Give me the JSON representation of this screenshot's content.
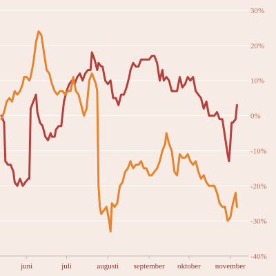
{
  "chart_data": {
    "type": "line",
    "ylim": [
      -40,
      30
    ],
    "xlim": [
      0,
      183
    ],
    "y_ticks": [
      30,
      20,
      10,
      0,
      -10,
      -20,
      -30,
      -40
    ],
    "y_tick_labels": [
      "30%",
      "20%",
      "10%",
      "0%",
      "-10%",
      "-20%",
      "-30%",
      "-40%"
    ],
    "x_ticks": [
      {
        "label": "juni",
        "x": 19
      },
      {
        "label": "juli",
        "x": 49
      },
      {
        "label": "augusti",
        "x": 80
      },
      {
        "label": "september",
        "x": 111
      },
      {
        "label": "oktober",
        "x": 141
      },
      {
        "label": "november",
        "x": 172
      }
    ],
    "grid": true,
    "series": [
      {
        "color": "#b8403a",
        "points": [
          [
            0,
            0
          ],
          [
            2,
            -2
          ],
          [
            3,
            -13
          ],
          [
            5,
            -14
          ],
          [
            7,
            -14
          ],
          [
            9,
            -16
          ],
          [
            10,
            -19
          ],
          [
            12,
            -20
          ],
          [
            14,
            -18
          ],
          [
            16,
            -20
          ],
          [
            18,
            -19
          ],
          [
            20,
            -18
          ],
          [
            21,
            -18
          ],
          [
            22,
            2
          ],
          [
            24,
            4
          ],
          [
            26,
            6
          ],
          [
            27,
            1
          ],
          [
            29,
            -2
          ],
          [
            31,
            -3
          ],
          [
            33,
            -6
          ],
          [
            35,
            -7
          ],
          [
            37,
            -5
          ],
          [
            38,
            -6
          ],
          [
            40,
            -6
          ],
          [
            41,
            -4
          ],
          [
            43,
            -3
          ],
          [
            45,
            -3
          ],
          [
            47,
            4
          ],
          [
            49,
            7
          ],
          [
            51,
            9
          ],
          [
            53,
            10
          ],
          [
            55,
            9
          ],
          [
            57,
            11
          ],
          [
            59,
            12
          ],
          [
            61,
            10
          ],
          [
            63,
            12
          ],
          [
            65,
            13
          ],
          [
            67,
            13
          ],
          [
            68,
            18
          ],
          [
            70,
            16
          ],
          [
            72,
            13
          ],
          [
            73,
            15
          ],
          [
            75,
            14
          ],
          [
            76,
            14
          ],
          [
            78,
            10
          ],
          [
            80,
            9
          ],
          [
            82,
            10
          ],
          [
            84,
            5
          ],
          [
            86,
            5
          ],
          [
            88,
            3
          ],
          [
            90,
            6
          ],
          [
            92,
            6
          ],
          [
            94,
            8
          ],
          [
            96,
            11
          ],
          [
            97,
            13
          ],
          [
            99,
            15
          ],
          [
            101,
            14
          ],
          [
            103,
            14
          ],
          [
            105,
            16
          ],
          [
            107,
            16
          ],
          [
            109,
            16
          ],
          [
            111,
            16
          ],
          [
            113,
            17
          ],
          [
            115,
            17
          ],
          [
            117,
            15
          ],
          [
            119,
            10
          ],
          [
            121,
            13
          ],
          [
            122,
            10
          ],
          [
            124,
            11
          ],
          [
            126,
            10
          ],
          [
            128,
            7
          ],
          [
            130,
            7
          ],
          [
            132,
            7
          ],
          [
            134,
            11
          ],
          [
            136,
            8
          ],
          [
            138,
            9
          ],
          [
            140,
            11
          ],
          [
            142,
            10
          ],
          [
            144,
            11
          ],
          [
            146,
            7
          ],
          [
            148,
            6
          ],
          [
            150,
            5
          ],
          [
            152,
            2
          ],
          [
            154,
            4
          ],
          [
            156,
            0
          ],
          [
            158,
            0
          ],
          [
            160,
            0
          ],
          [
            162,
            1
          ],
          [
            164,
            -1
          ],
          [
            166,
            -1
          ],
          [
            168,
            -6
          ],
          [
            170,
            -11
          ],
          [
            171,
            -13
          ],
          [
            172,
            -8
          ],
          [
            173,
            -2
          ],
          [
            174,
            -2
          ],
          [
            176,
            -1
          ],
          [
            177,
            3
          ]
        ]
      },
      {
        "color": "#e8842e",
        "points": [
          [
            0,
            -1
          ],
          [
            2,
            1
          ],
          [
            4,
            4
          ],
          [
            6,
            5
          ],
          [
            8,
            4
          ],
          [
            10,
            7
          ],
          [
            12,
            6
          ],
          [
            14,
            7
          ],
          [
            16,
            9
          ],
          [
            17,
            11
          ],
          [
            19,
            11
          ],
          [
            21,
            10
          ],
          [
            22,
            11
          ],
          [
            24,
            15
          ],
          [
            26,
            21
          ],
          [
            28,
            24
          ],
          [
            30,
            23
          ],
          [
            32,
            18
          ],
          [
            34,
            13
          ],
          [
            36,
            12
          ],
          [
            38,
            9
          ],
          [
            40,
            7
          ],
          [
            42,
            6
          ],
          [
            44,
            7
          ],
          [
            46,
            7
          ],
          [
            48,
            6
          ],
          [
            50,
            7
          ],
          [
            52,
            7
          ],
          [
            54,
            11
          ],
          [
            56,
            7
          ],
          [
            58,
            6
          ],
          [
            60,
            3
          ],
          [
            62,
            0
          ],
          [
            64,
            2
          ],
          [
            66,
            10
          ],
          [
            68,
            12
          ],
          [
            70,
            10
          ],
          [
            71,
            9
          ],
          [
            72,
            7
          ],
          [
            73,
            -20
          ],
          [
            74,
            -26
          ],
          [
            75,
            -28
          ],
          [
            77,
            -27
          ],
          [
            79,
            -26
          ],
          [
            81,
            -30
          ],
          [
            82,
            -33
          ],
          [
            83,
            -25
          ],
          [
            85,
            -26
          ],
          [
            87,
            -25
          ],
          [
            89,
            -20
          ],
          [
            91,
            -19
          ],
          [
            93,
            -16
          ],
          [
            95,
            -15
          ],
          [
            97,
            -13
          ],
          [
            99,
            -15
          ],
          [
            101,
            -14
          ],
          [
            103,
            -14
          ],
          [
            105,
            -13
          ],
          [
            107,
            -15
          ],
          [
            109,
            -15
          ],
          [
            111,
            -17
          ],
          [
            113,
            -17
          ],
          [
            115,
            -16
          ],
          [
            117,
            -15
          ],
          [
            119,
            -13
          ],
          [
            121,
            -10
          ],
          [
            123,
            -8
          ],
          [
            124,
            -5
          ],
          [
            126,
            -8
          ],
          [
            128,
            -10
          ],
          [
            130,
            -16
          ],
          [
            132,
            -17
          ],
          [
            134,
            -11
          ],
          [
            136,
            -12
          ],
          [
            138,
            -12
          ],
          [
            140,
            -11
          ],
          [
            142,
            -13
          ],
          [
            144,
            -14
          ],
          [
            146,
            -13
          ],
          [
            148,
            -16
          ],
          [
            150,
            -18
          ],
          [
            152,
            -17
          ],
          [
            154,
            -19
          ],
          [
            156,
            -20
          ],
          [
            158,
            -20
          ],
          [
            160,
            -20
          ],
          [
            162,
            -22
          ],
          [
            164,
            -25
          ],
          [
            166,
            -26
          ],
          [
            168,
            -26
          ],
          [
            170,
            -30
          ],
          [
            172,
            -29
          ],
          [
            174,
            -25
          ],
          [
            176,
            -22
          ],
          [
            177,
            -26
          ]
        ]
      }
    ]
  }
}
